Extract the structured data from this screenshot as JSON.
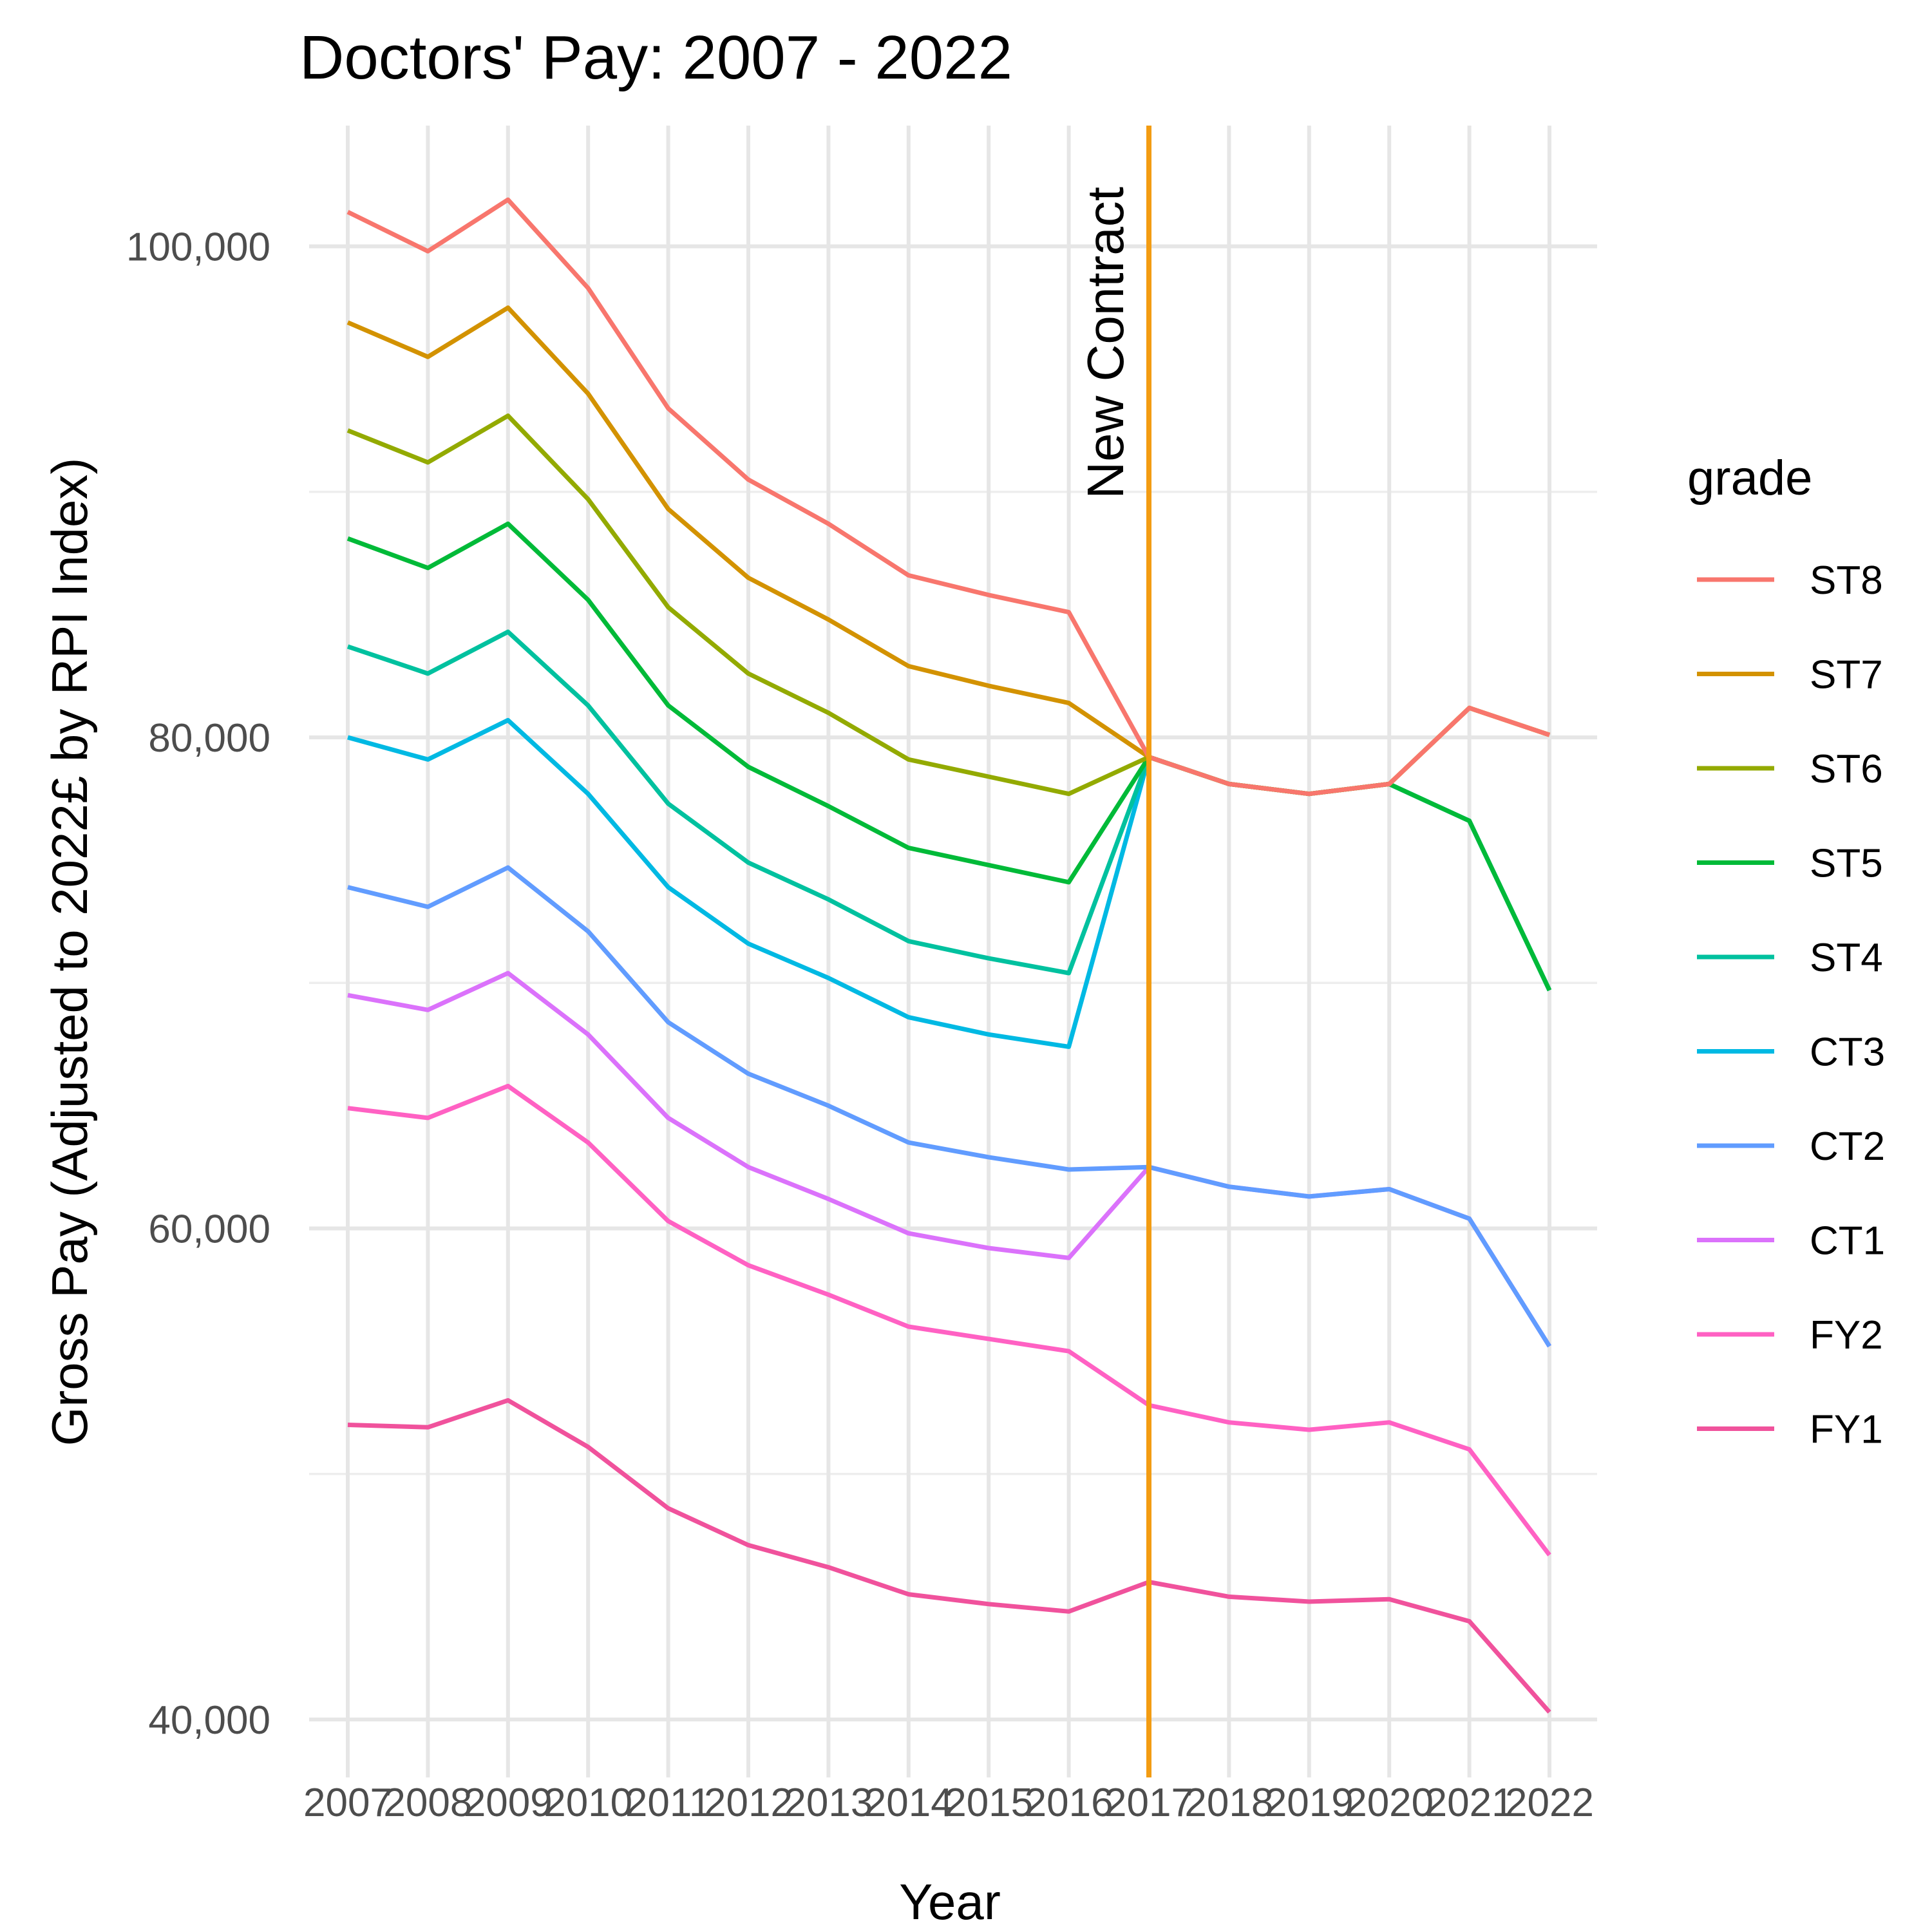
{
  "chart_data": {
    "type": "line",
    "title": "Doctors' Pay: 2007 - 2022",
    "xlabel": "Year",
    "ylabel": "Gross Pay (Adjusted to 2022£ by RPI Index)",
    "x": [
      "2007",
      "2008",
      "2009",
      "2010",
      "2011",
      "2012",
      "2013",
      "2014",
      "2015",
      "2016",
      "2017",
      "2018",
      "2019",
      "2020",
      "2021",
      "2022"
    ],
    "ylim": [
      38500,
      105000
    ],
    "yticks": [
      40000,
      60000,
      80000,
      100000
    ],
    "ytick_labels": [
      "40,000",
      "60,000",
      "80,000",
      "100,000"
    ],
    "grid": true,
    "legend": {
      "title": "grade",
      "position": "right"
    },
    "annotation": {
      "label": "New Contract",
      "x": "2017",
      "color": "#f39c12"
    },
    "series": [
      {
        "name": "ST8",
        "color": "#F8766D",
        "values": [
          101400,
          99800,
          101900,
          98300,
          93400,
          90500,
          88700,
          86600,
          85800,
          85100,
          79200,
          78100,
          77700,
          78100,
          81200,
          80100
        ]
      },
      {
        "name": "ST7",
        "color": "#D39200",
        "values": [
          96900,
          95500,
          97500,
          94000,
          89300,
          86500,
          84800,
          82900,
          82100,
          81400,
          79200,
          78100,
          77700,
          78100,
          81200,
          80100
        ]
      },
      {
        "name": "ST6",
        "color": "#93AA00",
        "values": [
          92500,
          91200,
          93100,
          89700,
          85300,
          82600,
          81000,
          79100,
          78400,
          77700,
          79200,
          78100,
          77700,
          78100,
          81200,
          80100
        ]
      },
      {
        "name": "ST5",
        "color": "#00BA38",
        "values": [
          88100,
          86900,
          88700,
          85600,
          81300,
          78800,
          77200,
          75500,
          74800,
          74100,
          79200,
          78100,
          77700,
          78100,
          76600,
          69700
        ]
      },
      {
        "name": "ST4",
        "color": "#00C19F",
        "values": [
          83700,
          82600,
          84300,
          81300,
          77300,
          74900,
          73400,
          71700,
          71000,
          70400,
          79200,
          78100,
          77700,
          78100,
          76600,
          69700
        ]
      },
      {
        "name": "CT3",
        "color": "#00B9E3",
        "values": [
          80000,
          79100,
          80700,
          77700,
          73900,
          71600,
          70200,
          68600,
          67900,
          67400,
          79200,
          78100,
          77700,
          78100,
          76600,
          69700
        ]
      },
      {
        "name": "CT2",
        "color": "#619CFF",
        "values": [
          73900,
          73100,
          74700,
          72100,
          68400,
          66300,
          65000,
          63500,
          62900,
          62400,
          62500,
          61700,
          61300,
          61600,
          60400,
          55200
        ]
      },
      {
        "name": "CT1",
        "color": "#DB72FB",
        "values": [
          69500,
          68900,
          70400,
          67900,
          64500,
          62500,
          61200,
          59800,
          59200,
          58800,
          62500,
          61700,
          61300,
          61600,
          60400,
          55200
        ]
      },
      {
        "name": "FY2",
        "color": "#FF61C3",
        "values": [
          64900,
          64500,
          65800,
          63500,
          60300,
          58500,
          57300,
          56000,
          55500,
          55000,
          52800,
          52100,
          51800,
          52100,
          51000,
          46700
        ]
      },
      {
        "name": "FY1",
        "color": "#F0529C",
        "values": [
          52000,
          51900,
          53000,
          51100,
          48600,
          47100,
          46200,
          45100,
          44700,
          44400,
          45600,
          45000,
          44800,
          44900,
          44000,
          40300
        ]
      }
    ]
  }
}
